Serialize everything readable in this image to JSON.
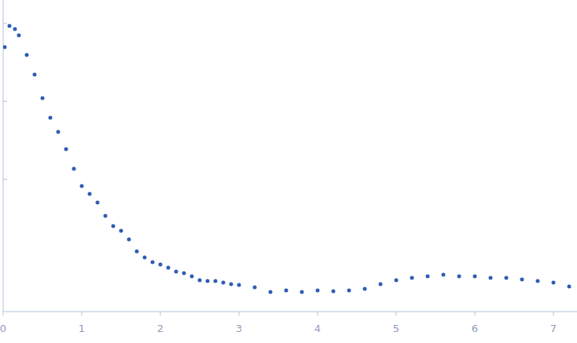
{
  "chart_data": {
    "type": "scatter",
    "color": "#2f5db5",
    "marker": "circle",
    "log": "y",
    "tick_labels": "x",
    "x": [
      0.02,
      0.08,
      0.15,
      0.2,
      0.3,
      0.4,
      0.5,
      0.6,
      0.7,
      0.8,
      0.9,
      1.0,
      1.1,
      1.2,
      1.3,
      1.4,
      1.5,
      1.6,
      1.7,
      1.8,
      1.9,
      2.0,
      2.1,
      2.2,
      2.3,
      2.4,
      2.5,
      2.6,
      2.7,
      2.8,
      2.9,
      3.0,
      3.2,
      3.4,
      3.6,
      3.8,
      4.0,
      4.2,
      4.4,
      4.6,
      4.8,
      5.0,
      5.2,
      5.4,
      5.6,
      5.8,
      6.0,
      6.2,
      6.4,
      6.6,
      6.8,
      7.0,
      7.2
    ],
    "values": [
      0.497,
      0.93,
      0.848,
      0.704,
      0.394,
      0.221,
      0.11,
      0.0616,
      0.0406,
      0.0244,
      0.0136,
      0.00818,
      0.00649,
      0.00503,
      0.00339,
      0.00251,
      0.00218,
      0.00169,
      0.00119,
      0.000991,
      0.000862,
      0.000804,
      0.000733,
      0.000653,
      0.000623,
      0.000568,
      0.000506,
      0.000494,
      0.000494,
      0.000472,
      0.00045,
      0.00044,
      0.000411,
      0.000357,
      0.000374,
      0.000357,
      0.000374,
      0.000366,
      0.000374,
      0.000392,
      0.00045,
      0.000506,
      0.000542,
      0.000568,
      0.000594,
      0.000568,
      0.000568,
      0.000542,
      0.000542,
      0.000518,
      0.000494,
      0.000472,
      0.00042
    ],
    "xlim": [
      0,
      7.3
    ],
    "xticks": [
      0,
      1,
      2,
      3,
      4,
      5,
      6,
      7
    ],
    "ylim": [
      0.0002,
      2
    ],
    "yticks": [
      0.01,
      0.1,
      1
    ]
  }
}
